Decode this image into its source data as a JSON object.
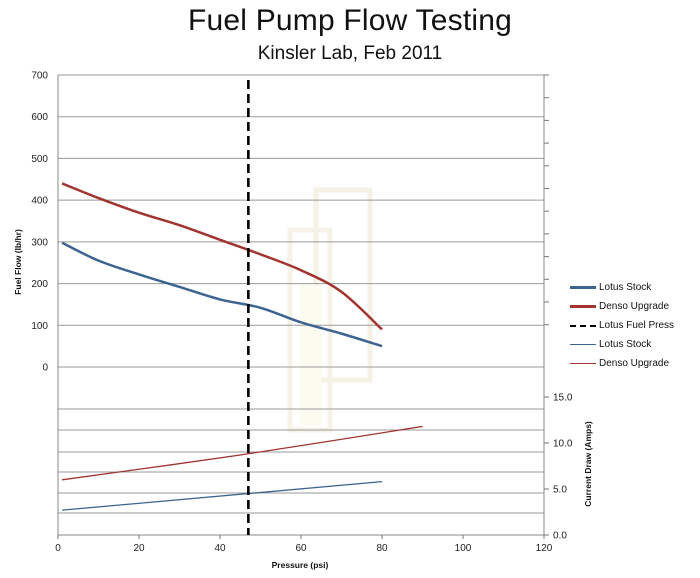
{
  "title": "Fuel Pump Flow Testing",
  "subtitle": "Kinsler Lab, Feb 2011",
  "colors": {
    "lotus": "#3d6491",
    "denso": "#a1342f",
    "reference": "#000000"
  },
  "chart_data": [
    {
      "type": "line",
      "role": "flow",
      "xlabel": "Pressure (psi)",
      "ylabel": "Fuel Flow (lb/hr)",
      "xlim": [
        0,
        120
      ],
      "ylim": [
        0,
        700
      ],
      "xticks": [
        "0",
        "20",
        "40",
        "60",
        "80",
        "100",
        "120"
      ],
      "yticks": [
        "0",
        "100",
        "200",
        "300",
        "400",
        "500",
        "600",
        "700"
      ],
      "series": [
        {
          "name": "Lotus Stock",
          "color": "#3d6491",
          "width": 2.5,
          "x": [
            1,
            10,
            20,
            30,
            40,
            50,
            60,
            70,
            80
          ],
          "y": [
            298,
            255,
            222,
            192,
            162,
            142,
            107,
            80,
            50
          ]
        },
        {
          "name": "Denso Upgrade",
          "color": "#a1342f",
          "width": 2.5,
          "x": [
            1,
            10,
            20,
            30,
            40,
            50,
            60,
            70,
            80
          ],
          "y": [
            440,
            405,
            370,
            340,
            305,
            270,
            232,
            180,
            90
          ]
        }
      ],
      "reference_line": {
        "name": "Lotus Fuel Press",
        "x": 47,
        "style": "dashed"
      }
    },
    {
      "type": "line",
      "role": "current",
      "xlabel": "Pressure (psi)",
      "ylabel": "Current Draw (Amps)",
      "xlim": [
        0,
        120
      ],
      "ylim": [
        0,
        15
      ],
      "yticks": [
        "0.0",
        "5.0",
        "10.0",
        "15.0"
      ],
      "series": [
        {
          "name": "Lotus Stock",
          "color": "#3d6491",
          "width": 1.3,
          "x": [
            1,
            80
          ],
          "y": [
            2.7,
            5.8
          ]
        },
        {
          "name": "Denso Upgrade",
          "color": "#a1342f",
          "width": 1.3,
          "x": [
            1,
            45,
            90
          ],
          "y": [
            6.0,
            8.7,
            11.8
          ]
        }
      ]
    }
  ],
  "legend": [
    {
      "label": "Lotus Stock",
      "color": "#3d6491",
      "style": "solid-thick"
    },
    {
      "label": "Denso Upgrade",
      "color": "#a1342f",
      "style": "solid-thick"
    },
    {
      "label": "Lotus Fuel Press",
      "color": "#000000",
      "style": "dashed"
    },
    {
      "label": "Lotus Stock",
      "color": "#3d6491",
      "style": "solid-thin"
    },
    {
      "label": "Denso Upgrade",
      "color": "#a1342f",
      "style": "solid-thin"
    }
  ]
}
